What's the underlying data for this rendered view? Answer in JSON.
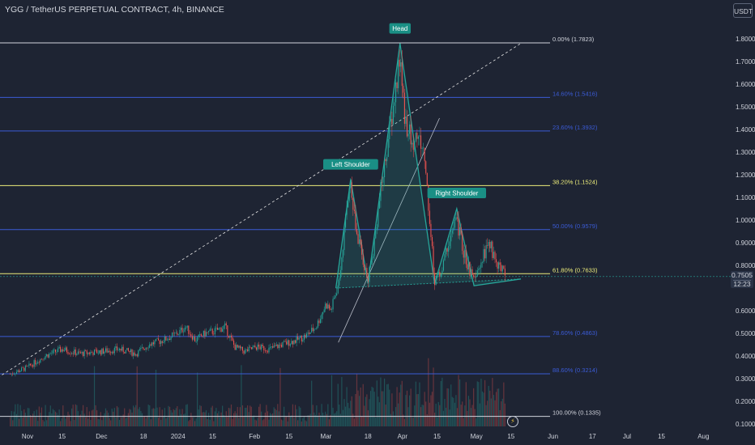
{
  "header": {
    "title": "YGG / TetherUS PERPETUAL CONTRACT, 4h, BINANCE",
    "currency_button": "USDT"
  },
  "price_badge": {
    "price": "0.7505",
    "countdown": "12:23"
  },
  "colors": {
    "background": "#1e2433",
    "fib_blue": "#3b5bd6",
    "fib_yellow": "#ecec7a",
    "fib_white": "#d1d4dc",
    "pattern_green": "#26a69a",
    "candle_up": "#26a69a",
    "candle_down": "#ef5350",
    "text": "#d1d4dc"
  },
  "chart_data": {
    "type": "candlestick",
    "symbol": "YGG / TetherUS PERPETUAL CONTRACT",
    "interval": "4h",
    "exchange": "BINANCE",
    "x_tick_labels": [
      "Nov",
      "15",
      "Dec",
      "18",
      "2024",
      "15",
      "Feb",
      "15",
      "Mar",
      "18",
      "Apr",
      "15",
      "May",
      "15",
      "Jun",
      "17",
      "Jul",
      "15",
      "Aug"
    ],
    "y_tick_labels": [
      "1.8000",
      "1.7000",
      "1.6000",
      "1.5000",
      "1.4000",
      "1.3000",
      "1.2000",
      "1.1000",
      "1.0000",
      "0.9000",
      "0.8000",
      "0.6000",
      "0.5000",
      "0.4000",
      "0.3000",
      "0.2000",
      "0.1000"
    ],
    "ylim": [
      0.1,
      1.8
    ],
    "last_price": 0.7505,
    "price_path": [
      [
        "2023-10-25",
        0.32
      ],
      [
        "2023-11-01",
        0.35
      ],
      [
        "2023-11-08",
        0.4
      ],
      [
        "2023-11-15",
        0.43
      ],
      [
        "2023-11-22",
        0.41
      ],
      [
        "2023-12-01",
        0.42
      ],
      [
        "2023-12-08",
        0.43
      ],
      [
        "2023-12-15",
        0.41
      ],
      [
        "2023-12-20",
        0.45
      ],
      [
        "2023-12-26",
        0.47
      ],
      [
        "2024-01-01",
        0.5
      ],
      [
        "2024-01-04",
        0.53
      ],
      [
        "2024-01-08",
        0.47
      ],
      [
        "2024-01-12",
        0.5
      ],
      [
        "2024-01-16",
        0.51
      ],
      [
        "2024-01-20",
        0.53
      ],
      [
        "2024-01-24",
        0.44
      ],
      [
        "2024-01-28",
        0.42
      ],
      [
        "2024-02-02",
        0.44
      ],
      [
        "2024-02-07",
        0.43
      ],
      [
        "2024-02-12",
        0.45
      ],
      [
        "2024-02-18",
        0.47
      ],
      [
        "2024-02-22",
        0.49
      ],
      [
        "2024-02-26",
        0.53
      ],
      [
        "2024-03-01",
        0.63
      ],
      [
        "2024-03-03",
        0.6
      ],
      [
        "2024-03-06",
        0.72
      ],
      [
        "2024-03-11",
        1.19
      ],
      [
        "2024-03-13",
        0.96
      ],
      [
        "2024-03-15",
        0.87
      ],
      [
        "2024-03-18",
        0.73
      ],
      [
        "2024-03-20",
        0.86
      ],
      [
        "2024-03-23",
        1.12
      ],
      [
        "2024-03-26",
        1.34
      ],
      [
        "2024-03-28",
        1.47
      ],
      [
        "2024-03-31",
        1.72
      ],
      [
        "2024-04-02",
        1.45
      ],
      [
        "2024-04-05",
        1.33
      ],
      [
        "2024-04-07",
        1.38
      ],
      [
        "2024-04-10",
        1.28
      ],
      [
        "2024-04-12",
        1.0
      ],
      [
        "2024-04-14",
        0.73
      ],
      [
        "2024-04-17",
        0.78
      ],
      [
        "2024-04-20",
        0.92
      ],
      [
        "2024-04-23",
        1.0
      ],
      [
        "2024-04-26",
        0.85
      ],
      [
        "2024-04-30",
        0.72
      ],
      [
        "2024-05-03",
        0.82
      ],
      [
        "2024-05-06",
        0.9
      ],
      [
        "2024-05-09",
        0.82
      ],
      [
        "2024-05-13",
        0.75
      ]
    ],
    "fibonacci_levels": [
      {
        "label": "0.00% (1.7823)",
        "price": 1.7823,
        "color": "#d1d4dc"
      },
      {
        "label": "14.60% (1.5416)",
        "price": 1.5416,
        "color": "#3b5bd6"
      },
      {
        "label": "23.60% (1.3932)",
        "price": 1.3932,
        "color": "#3b5bd6"
      },
      {
        "label": "38.20% (1.1524)",
        "price": 1.1524,
        "color": "#ecec7a"
      },
      {
        "label": "50.00% (0.9579)",
        "price": 0.9579,
        "color": "#3b5bd6"
      },
      {
        "label": "61.80% (0.7633)",
        "price": 0.7633,
        "color": "#ecec7a"
      },
      {
        "label": "78.60% (0.4863)",
        "price": 0.4863,
        "color": "#3b5bd6"
      },
      {
        "label": "88.60% (0.3214)",
        "price": 0.3214,
        "color": "#3b5bd6"
      },
      {
        "label": "100.00% (0.1335)",
        "price": 0.1335,
        "color": "#d1d4dc"
      }
    ],
    "pattern": {
      "name": "Head and Shoulders",
      "annotations": [
        "Left Shoulder",
        "Head",
        "Right Shoulder"
      ],
      "points": [
        [
          "2024-03-05",
          0.7
        ],
        [
          "2024-03-11",
          1.18
        ],
        [
          "2024-03-18",
          0.72
        ],
        [
          "2024-03-31",
          1.78
        ],
        [
          "2024-04-14",
          0.72
        ],
        [
          "2024-04-23",
          1.05
        ],
        [
          "2024-04-30",
          0.71
        ],
        [
          "2024-05-19",
          0.74
        ]
      ]
    },
    "grid": false
  }
}
